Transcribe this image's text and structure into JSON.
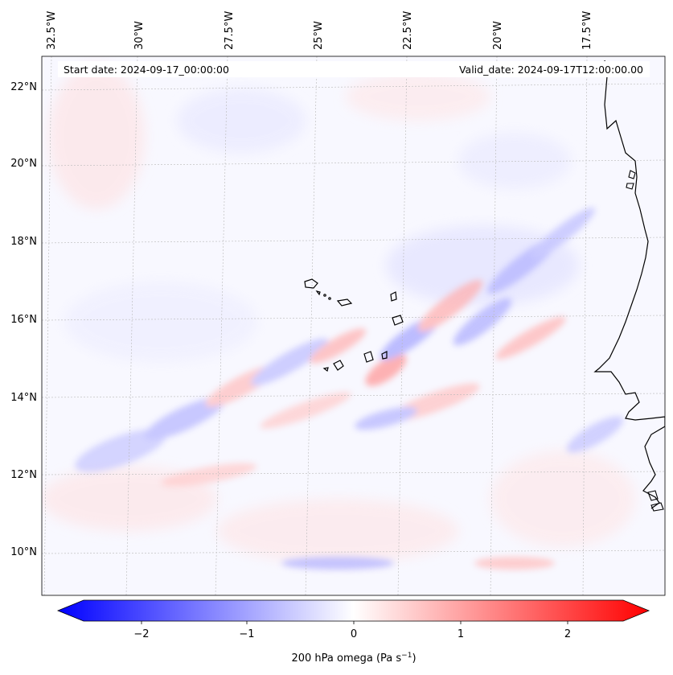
{
  "header": {
    "start_date": "Start date: 2024-09-17_00:00:00",
    "valid_date": "Valid_date: 2024-09-17T12:00:00.00"
  },
  "map": {
    "lon_labels": [
      "32.5°W",
      "30°W",
      "27.5°W",
      "25°W",
      "22.5°W",
      "20°W",
      "17.5°W"
    ],
    "lat_labels": [
      "22°N",
      "20°N",
      "18°N",
      "16°N",
      "14°N",
      "12°N",
      "10°N"
    ],
    "field_colors": {
      "negative": "#0000ff",
      "zero": "#ffffff",
      "positive": "#ff0000"
    }
  },
  "colorbar": {
    "ticks": [
      "−2",
      "−1",
      "0",
      "1",
      "2"
    ],
    "label": "200 hPa omega (Pa s",
    "label_sup": "−1",
    "label_end": ")",
    "range": [
      -2.6,
      2.6
    ]
  }
}
